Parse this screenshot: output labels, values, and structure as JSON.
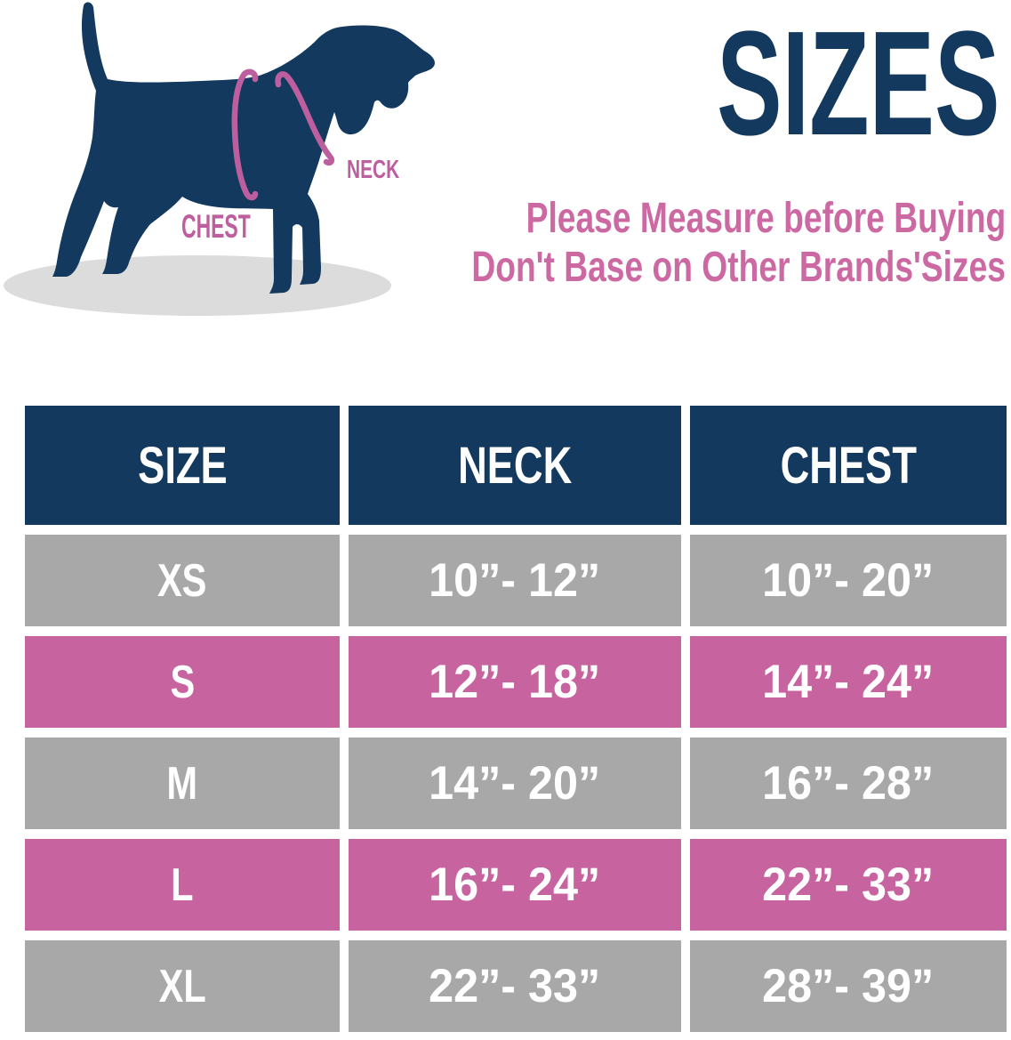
{
  "header": {
    "title": "SIZES",
    "subtitle_line1": "Please Measure before Buying",
    "subtitle_line2": "Don't Base on Other Brands'Sizes"
  },
  "diagram": {
    "neck_label": "NECK",
    "chest_label": "CHEST"
  },
  "chart_data": {
    "type": "table",
    "columns": [
      "SIZE",
      "NECK",
      "CHEST"
    ],
    "rows": [
      {
        "size": "XS",
        "neck": "10”- 12”",
        "chest": "10”- 20”",
        "highlighted": false
      },
      {
        "size": "S",
        "neck": "12”- 18”",
        "chest": "14”- 24”",
        "highlighted": true
      },
      {
        "size": "M",
        "neck": "14”- 20”",
        "chest": "16”- 28”",
        "highlighted": false
      },
      {
        "size": "L",
        "neck": "16”- 24”",
        "chest": "22”- 33”",
        "highlighted": true
      },
      {
        "size": "XL",
        "neck": "22”- 33”",
        "chest": "28”- 39”",
        "highlighted": false
      }
    ]
  },
  "colors": {
    "navy": "#14395e",
    "row_gray": "#a8a8a8",
    "row_pink": "#c7639f",
    "subtitle_pink": "#cc68a2",
    "strap_pink": "#bd5f9e",
    "shadow_gray": "#dcdcdc",
    "table_text": "#ffffff"
  }
}
